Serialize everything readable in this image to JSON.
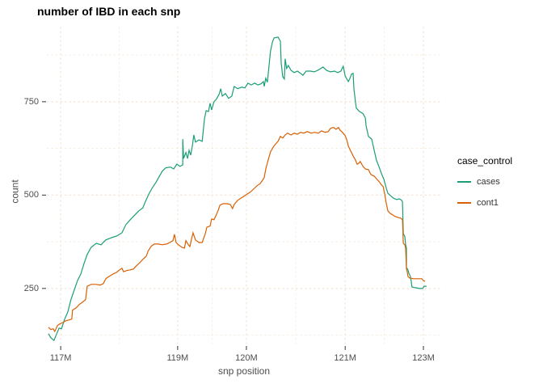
{
  "title": "number of IBD in each snp",
  "axes": {
    "x_label": "snp position",
    "y_label": "count",
    "x_tick_labels": [
      "117M",
      "119M",
      "120M",
      "121M",
      "123M"
    ],
    "y_tick_labels": [
      "250",
      "500",
      "750"
    ]
  },
  "legend": {
    "title": "case_control",
    "items": [
      {
        "label": "cases",
        "color": "#1B9E77"
      },
      {
        "label": "cont1",
        "color": "#D95F02"
      }
    ]
  },
  "colors": {
    "grid": "#F3E6D7",
    "tick_text": "#4d4d4d",
    "axis_tick": "#333333",
    "title": "#000000"
  },
  "chart_data": {
    "type": "line",
    "title": "number of IBD in each snp",
    "xlabel": "snp position",
    "ylabel": "count",
    "ylim": [
      96,
      951
    ],
    "grid": "dashed, major and minor, light peach on white",
    "legend_position": "right",
    "legend_title": "case_control",
    "x_axis": {
      "note": "non-linear snp-position axis; pos = normalized 0-1 across panel",
      "major_ticks": [
        {
          "label": "117M",
          "pos": 0.035
        },
        {
          "label": "119M",
          "pos": 0.331
        },
        {
          "label": "120M",
          "pos": 0.505
        },
        {
          "label": "121M",
          "pos": 0.755
        },
        {
          "label": "123M",
          "pos": 0.953
        }
      ],
      "minor_tick_pos": [
        0.183,
        0.418,
        0.63,
        0.854
      ]
    },
    "y_major_ticks": [
      250,
      500,
      750
    ],
    "y_minor_ticks": [
      125,
      375,
      625,
      875
    ],
    "series": [
      {
        "name": "cases",
        "color": "#1B9E77",
        "points": [
          [
            0.004,
            129
          ],
          [
            0.01,
            118
          ],
          [
            0.018,
            111
          ],
          [
            0.025,
            129
          ],
          [
            0.031,
            144
          ],
          [
            0.037,
            142
          ],
          [
            0.045,
            168
          ],
          [
            0.053,
            187
          ],
          [
            0.061,
            220
          ],
          [
            0.07,
            248
          ],
          [
            0.078,
            272
          ],
          [
            0.086,
            289
          ],
          [
            0.094,
            317
          ],
          [
            0.102,
            341
          ],
          [
            0.112,
            360
          ],
          [
            0.125,
            371
          ],
          [
            0.137,
            367
          ],
          [
            0.149,
            380
          ],
          [
            0.164,
            386
          ],
          [
            0.178,
            391
          ],
          [
            0.19,
            399
          ],
          [
            0.2,
            421
          ],
          [
            0.211,
            434
          ],
          [
            0.223,
            447
          ],
          [
            0.233,
            458
          ],
          [
            0.243,
            466
          ],
          [
            0.249,
            482
          ],
          [
            0.258,
            503
          ],
          [
            0.266,
            518
          ],
          [
            0.276,
            534
          ],
          [
            0.284,
            549
          ],
          [
            0.292,
            564
          ],
          [
            0.301,
            573
          ],
          [
            0.313,
            575
          ],
          [
            0.321,
            570
          ],
          [
            0.329,
            583
          ],
          [
            0.337,
            577
          ],
          [
            0.344,
            581
          ],
          [
            0.344,
            650
          ],
          [
            0.346,
            598
          ],
          [
            0.352,
            614
          ],
          [
            0.356,
            598
          ],
          [
            0.36,
            620
          ],
          [
            0.364,
            607
          ],
          [
            0.368,
            631
          ],
          [
            0.372,
            661
          ],
          [
            0.376,
            642
          ],
          [
            0.385,
            648
          ],
          [
            0.393,
            644
          ],
          [
            0.399,
            705
          ],
          [
            0.403,
            726
          ],
          [
            0.409,
            724
          ],
          [
            0.413,
            746
          ],
          [
            0.417,
            728
          ],
          [
            0.423,
            750
          ],
          [
            0.429,
            757
          ],
          [
            0.436,
            770
          ],
          [
            0.44,
            785
          ],
          [
            0.444,
            765
          ],
          [
            0.452,
            772
          ],
          [
            0.46,
            759
          ],
          [
            0.468,
            765
          ],
          [
            0.474,
            791
          ],
          [
            0.483,
            785
          ],
          [
            0.493,
            789
          ],
          [
            0.501,
            787
          ],
          [
            0.509,
            800
          ],
          [
            0.517,
            795
          ],
          [
            0.526,
            800
          ],
          [
            0.534,
            795
          ],
          [
            0.542,
            798
          ],
          [
            0.548,
            804
          ],
          [
            0.55,
            791
          ],
          [
            0.554,
            813
          ],
          [
            0.558,
            802
          ],
          [
            0.562,
            843
          ],
          [
            0.566,
            886
          ],
          [
            0.571,
            910
          ],
          [
            0.575,
            921
          ],
          [
            0.585,
            923
          ],
          [
            0.591,
            912
          ],
          [
            0.593,
            854
          ],
          [
            0.597,
            817
          ],
          [
            0.601,
            811
          ],
          [
            0.603,
            865
          ],
          [
            0.607,
            839
          ],
          [
            0.611,
            847
          ],
          [
            0.618,
            834
          ],
          [
            0.626,
            828
          ],
          [
            0.634,
            832
          ],
          [
            0.642,
            826
          ],
          [
            0.648,
            821
          ],
          [
            0.656,
            832
          ],
          [
            0.667,
            832
          ],
          [
            0.677,
            830
          ],
          [
            0.685,
            834
          ],
          [
            0.693,
            839
          ],
          [
            0.699,
            843
          ],
          [
            0.708,
            834
          ],
          [
            0.718,
            830
          ],
          [
            0.728,
            832
          ],
          [
            0.736,
            828
          ],
          [
            0.744,
            832
          ],
          [
            0.75,
            845
          ],
          [
            0.755,
            819
          ],
          [
            0.759,
            811
          ],
          [
            0.763,
            804
          ],
          [
            0.767,
            813
          ],
          [
            0.771,
            824
          ],
          [
            0.775,
            826
          ],
          [
            0.777,
            785
          ],
          [
            0.781,
            750
          ],
          [
            0.783,
            733
          ],
          [
            0.791,
            724
          ],
          [
            0.8,
            718
          ],
          [
            0.806,
            707
          ],
          [
            0.808,
            685
          ],
          [
            0.814,
            657
          ],
          [
            0.822,
            650
          ],
          [
            0.828,
            622
          ],
          [
            0.834,
            594
          ],
          [
            0.841,
            575
          ],
          [
            0.847,
            557
          ],
          [
            0.853,
            542
          ],
          [
            0.859,
            518
          ],
          [
            0.863,
            505
          ],
          [
            0.869,
            499
          ],
          [
            0.877,
            492
          ],
          [
            0.885,
            488
          ],
          [
            0.892,
            490
          ],
          [
            0.898,
            486
          ],
          [
            0.9,
            482
          ],
          [
            0.902,
            397
          ],
          [
            0.906,
            389
          ],
          [
            0.908,
            367
          ],
          [
            0.91,
            358
          ],
          [
            0.91,
            306
          ],
          [
            0.914,
            300
          ],
          [
            0.916,
            291
          ],
          [
            0.92,
            282
          ],
          [
            0.922,
            269
          ],
          [
            0.924,
            254
          ],
          [
            0.932,
            252
          ],
          [
            0.943,
            250
          ],
          [
            0.951,
            250
          ],
          [
            0.955,
            256
          ],
          [
            0.961,
            256
          ]
        ]
      },
      {
        "name": "cont1",
        "color": "#D95F02",
        "points": [
          [
            0.004,
            146
          ],
          [
            0.01,
            140
          ],
          [
            0.016,
            142
          ],
          [
            0.02,
            135
          ],
          [
            0.027,
            151
          ],
          [
            0.033,
            155
          ],
          [
            0.041,
            159
          ],
          [
            0.049,
            164
          ],
          [
            0.057,
            166
          ],
          [
            0.063,
            168
          ],
          [
            0.065,
            192
          ],
          [
            0.074,
            198
          ],
          [
            0.082,
            207
          ],
          [
            0.09,
            213
          ],
          [
            0.098,
            220
          ],
          [
            0.102,
            256
          ],
          [
            0.112,
            261
          ],
          [
            0.125,
            261
          ],
          [
            0.135,
            259
          ],
          [
            0.143,
            263
          ],
          [
            0.149,
            276
          ],
          [
            0.157,
            282
          ],
          [
            0.168,
            289
          ],
          [
            0.176,
            293
          ],
          [
            0.184,
            300
          ],
          [
            0.19,
            304
          ],
          [
            0.194,
            295
          ],
          [
            0.202,
            298
          ],
          [
            0.211,
            300
          ],
          [
            0.219,
            302
          ],
          [
            0.227,
            311
          ],
          [
            0.235,
            319
          ],
          [
            0.243,
            328
          ],
          [
            0.252,
            337
          ],
          [
            0.256,
            350
          ],
          [
            0.264,
            363
          ],
          [
            0.272,
            369
          ],
          [
            0.282,
            369
          ],
          [
            0.292,
            367
          ],
          [
            0.303,
            369
          ],
          [
            0.311,
            373
          ],
          [
            0.319,
            378
          ],
          [
            0.323,
            395
          ],
          [
            0.327,
            373
          ],
          [
            0.333,
            367
          ],
          [
            0.342,
            360
          ],
          [
            0.348,
            358
          ],
          [
            0.352,
            378
          ],
          [
            0.358,
            367
          ],
          [
            0.362,
            362
          ],
          [
            0.366,
            382
          ],
          [
            0.37,
            399
          ],
          [
            0.376,
            380
          ],
          [
            0.385,
            373
          ],
          [
            0.393,
            373
          ],
          [
            0.401,
            397
          ],
          [
            0.405,
            414
          ],
          [
            0.413,
            417
          ],
          [
            0.417,
            436
          ],
          [
            0.423,
            434
          ],
          [
            0.427,
            443
          ],
          [
            0.434,
            460
          ],
          [
            0.438,
            473
          ],
          [
            0.446,
            477
          ],
          [
            0.456,
            477
          ],
          [
            0.464,
            475
          ],
          [
            0.47,
            464
          ],
          [
            0.474,
            475
          ],
          [
            0.483,
            486
          ],
          [
            0.491,
            492
          ],
          [
            0.499,
            497
          ],
          [
            0.507,
            503
          ],
          [
            0.515,
            508
          ],
          [
            0.523,
            516
          ],
          [
            0.532,
            525
          ],
          [
            0.54,
            531
          ],
          [
            0.546,
            540
          ],
          [
            0.55,
            547
          ],
          [
            0.554,
            570
          ],
          [
            0.558,
            586
          ],
          [
            0.562,
            601
          ],
          [
            0.566,
            616
          ],
          [
            0.573,
            629
          ],
          [
            0.579,
            637
          ],
          [
            0.585,
            644
          ],
          [
            0.591,
            657
          ],
          [
            0.597,
            653
          ],
          [
            0.603,
            661
          ],
          [
            0.609,
            666
          ],
          [
            0.618,
            661
          ],
          [
            0.626,
            666
          ],
          [
            0.634,
            663
          ],
          [
            0.642,
            668
          ],
          [
            0.65,
            666
          ],
          [
            0.659,
            670
          ],
          [
            0.669,
            666
          ],
          [
            0.677,
            668
          ],
          [
            0.687,
            666
          ],
          [
            0.695,
            672
          ],
          [
            0.704,
            668
          ],
          [
            0.712,
            670
          ],
          [
            0.718,
            679
          ],
          [
            0.726,
            681
          ],
          [
            0.732,
            676
          ],
          [
            0.738,
            681
          ],
          [
            0.742,
            674
          ],
          [
            0.748,
            668
          ],
          [
            0.755,
            659
          ],
          [
            0.759,
            648
          ],
          [
            0.763,
            631
          ],
          [
            0.769,
            618
          ],
          [
            0.775,
            605
          ],
          [
            0.781,
            594
          ],
          [
            0.785,
            583
          ],
          [
            0.789,
            585
          ],
          [
            0.793,
            590
          ],
          [
            0.8,
            577
          ],
          [
            0.806,
            570
          ],
          [
            0.814,
            568
          ],
          [
            0.82,
            555
          ],
          [
            0.828,
            551
          ],
          [
            0.834,
            544
          ],
          [
            0.841,
            536
          ],
          [
            0.847,
            527
          ],
          [
            0.851,
            523
          ],
          [
            0.855,
            503
          ],
          [
            0.859,
            477
          ],
          [
            0.863,
            458
          ],
          [
            0.869,
            451
          ],
          [
            0.875,
            447
          ],
          [
            0.881,
            443
          ],
          [
            0.889,
            440
          ],
          [
            0.896,
            438
          ],
          [
            0.9,
            434
          ],
          [
            0.902,
            371
          ],
          [
            0.906,
            367
          ],
          [
            0.908,
            358
          ],
          [
            0.91,
            302
          ],
          [
            0.912,
            295
          ],
          [
            0.914,
            282
          ],
          [
            0.918,
            278
          ],
          [
            0.928,
            276
          ],
          [
            0.939,
            276
          ],
          [
            0.949,
            276
          ],
          [
            0.953,
            271
          ],
          [
            0.957,
            269
          ]
        ]
      }
    ]
  }
}
